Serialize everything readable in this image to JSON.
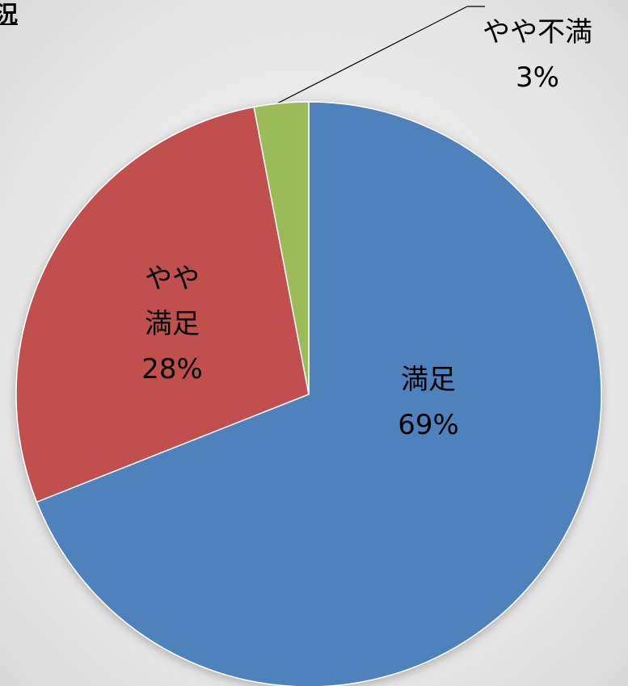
{
  "chart_data": {
    "type": "pie",
    "title": "況",
    "categories": [
      "満足",
      "やや満足",
      "やや不満"
    ],
    "values": [
      69,
      28,
      3
    ],
    "value_labels": [
      "69%",
      "28%",
      "3%"
    ],
    "colors": [
      "#4f81bd",
      "#c0504d",
      "#9bbb59"
    ]
  }
}
